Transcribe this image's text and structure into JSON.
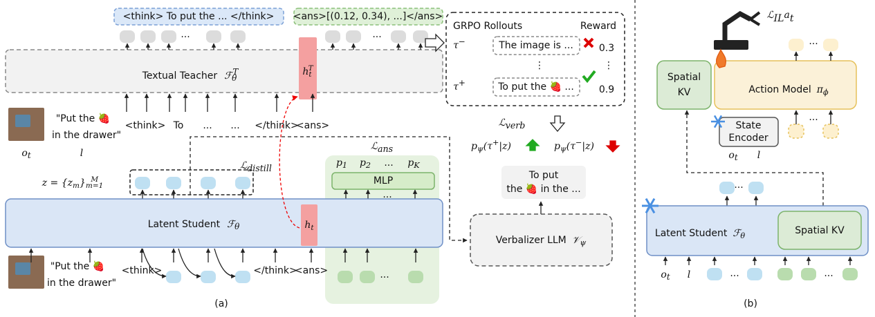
{
  "panel_a": {
    "teacher_output": {
      "think": "<think> To put the ... </think>",
      "ans": "<ans>[(0.12, 0.34), ...]</ans>"
    },
    "ellipsis": "...",
    "teacher": {
      "name": "Textual Teacher",
      "symbol": "ℱ",
      "sub": "θ",
      "sup": "T"
    },
    "teacher_hidden": {
      "symbol": "h",
      "sub": "t",
      "sup": "T"
    },
    "observation": {
      "instruction_line1": "\"Put the 🍓",
      "instruction_line2": "in the drawer\"",
      "image_symbol": "o",
      "image_sub": "t",
      "language_symbol": "l"
    },
    "teacher_inputs": [
      "<think>",
      "To",
      "...",
      "...",
      "</think>",
      "<ans>"
    ],
    "loss_distill": {
      "symbol": "ℒ",
      "sub": "distill"
    },
    "loss_ans": {
      "symbol": "ℒ",
      "sub": "ans"
    },
    "latent_set": {
      "text": "z = {z",
      "sub": "m",
      "close": "}",
      "lower": "m=1",
      "upper": "M"
    },
    "heads": [
      {
        "symbol": "p",
        "sub": "1"
      },
      {
        "symbol": "p",
        "sub": "2"
      },
      {
        "symbol": "p",
        "sub": "K"
      }
    ],
    "mlp": "MLP",
    "student": {
      "name": "Latent Student",
      "symbol": "ℱ",
      "sub": "θ"
    },
    "student_hidden": {
      "symbol": "h",
      "sub": "t"
    },
    "student_inputs": [
      "<think>",
      "</think>",
      "<ans>"
    ],
    "rollouts": {
      "title": "GRPO Rollouts",
      "reward_header": "Reward",
      "vdots": "⋮",
      "negative": {
        "symbol": "τ",
        "sup": "−",
        "text": "The image is ...",
        "reward": 0.3
      },
      "positive": {
        "symbol": "τ",
        "sup": "+",
        "text": "To put the 🍓 ...",
        "reward": 0.9
      }
    },
    "loss_verb": {
      "symbol": "ℒ",
      "sub": "verb"
    },
    "likelihood_positive": {
      "p": "p",
      "sub": "ψ",
      "open": "(τ",
      "sup": "+",
      "close": "|z)"
    },
    "likelihood_negative": {
      "p": "p",
      "sub": "ψ",
      "open": "(τ",
      "sup": "−",
      "close": "|z)"
    },
    "verbal_output": [
      "To put",
      "the 🍓 in the ..."
    ],
    "verbalizer": {
      "name": "Verbalizer LLM",
      "symbol": "𝒱",
      "sub": "ψ"
    },
    "caption": "(a)"
  },
  "panel_b": {
    "loss_il": {
      "symbol": "ℒ",
      "sub": "IL",
      "action_symbol": "a",
      "action_sub": "t"
    },
    "spatial_kv": [
      "Spatial",
      "KV"
    ],
    "action_model": {
      "name": "Action Model",
      "symbol": "π",
      "sub": "ϕ"
    },
    "state_encoder": [
      "State",
      "Encoder"
    ],
    "observation": {
      "image_symbol": "o",
      "image_sub": "t",
      "language_symbol": "l"
    },
    "student": {
      "name": "Latent Student",
      "symbol": "ℱ",
      "sub": "θ"
    },
    "student_kv": "Spatial KV",
    "ellipsis": "...",
    "caption": "(b)"
  }
}
